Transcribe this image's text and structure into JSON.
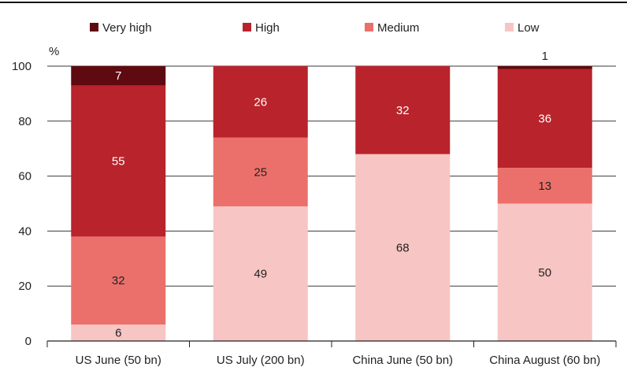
{
  "chart_data": {
    "type": "bar",
    "stacked": true,
    "categories": [
      "US June (50 bn)",
      "US July (200 bn)",
      "China June (50 bn)",
      "China August (60 bn)"
    ],
    "series": [
      {
        "name": "Low",
        "color": "#f7c5c3",
        "values": [
          6,
          49,
          68,
          50
        ]
      },
      {
        "name": "Medium",
        "color": "#eb706b",
        "values": [
          32,
          25,
          0,
          13
        ]
      },
      {
        "name": "High",
        "color": "#b9232b",
        "values": [
          55,
          26,
          32,
          36
        ]
      },
      {
        "name": "Very high",
        "color": "#5e0a10",
        "values": [
          7,
          0,
          0,
          1
        ]
      }
    ],
    "legend_order": [
      "Very high",
      "High",
      "Medium",
      "Low"
    ],
    "legend_position": "top",
    "ylabel": "%",
    "ylim": [
      0,
      100
    ],
    "yticks": [
      0,
      20,
      40,
      60,
      80,
      100
    ],
    "grid": true
  }
}
